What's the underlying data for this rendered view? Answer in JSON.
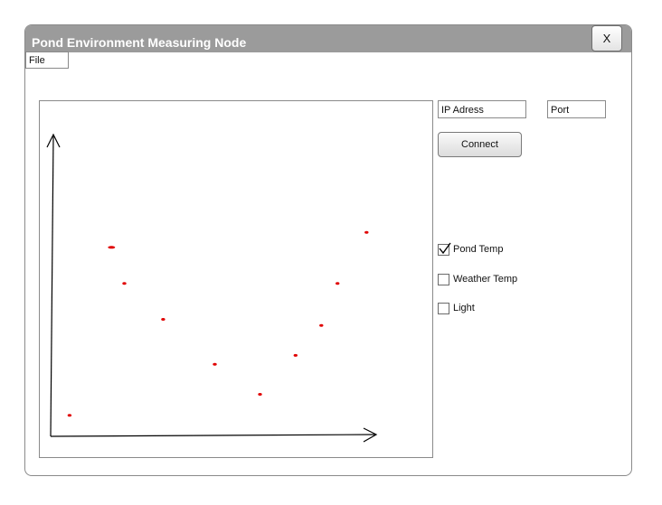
{
  "window": {
    "title": "Pond Environment Measuring Node",
    "close_label": "X"
  },
  "menu": {
    "file_label": "File"
  },
  "connection": {
    "ip_field": "IP Adress",
    "port_field": "Port",
    "connect_label": "Connect"
  },
  "sensors": [
    {
      "label": "Pond Temp",
      "checked": true
    },
    {
      "label": "Weather Temp",
      "checked": false
    },
    {
      "label": "Light",
      "checked": false
    }
  ],
  "colors": {
    "title_bar": "#9b9b9b",
    "data_points": "#e00000"
  },
  "chart_data": {
    "type": "scatter",
    "title": "",
    "xlabel": "",
    "ylabel": "",
    "points": [
      {
        "x": 0.05,
        "y": 0.07
      },
      {
        "x": 0.18,
        "y": 0.63
      },
      {
        "x": 0.22,
        "y": 0.51
      },
      {
        "x": 0.34,
        "y": 0.39
      },
      {
        "x": 0.5,
        "y": 0.24
      },
      {
        "x": 0.64,
        "y": 0.14
      },
      {
        "x": 0.75,
        "y": 0.27
      },
      {
        "x": 0.83,
        "y": 0.37
      },
      {
        "x": 0.88,
        "y": 0.51
      },
      {
        "x": 0.97,
        "y": 0.68
      }
    ]
  }
}
